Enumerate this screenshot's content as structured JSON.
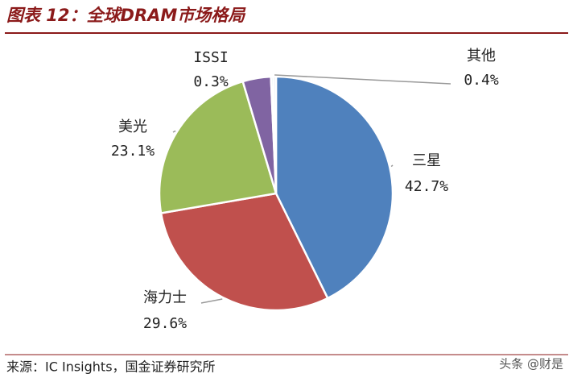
{
  "header": {
    "title": "图表 12：全球DRAM市场格局"
  },
  "chart_data": {
    "type": "pie",
    "categories": [
      "三星",
      "海力士",
      "美光",
      null,
      "ISSI",
      "其他"
    ],
    "values": [
      42.7,
      29.6,
      23.1,
      3.9,
      0.3,
      0.4
    ],
    "value_labels": [
      "42.7%",
      "29.6%",
      "23.1%",
      null,
      "0.3%",
      "0.4%"
    ],
    "colors": [
      "#4f81bd",
      "#c0504d",
      "#9bbb59",
      "#8064a2",
      "#4bacc6",
      "#eef3f8"
    ]
  },
  "footer": {
    "source": "来源：IC Insights，国金证券研究所",
    "watermark": "头条 @财是"
  }
}
